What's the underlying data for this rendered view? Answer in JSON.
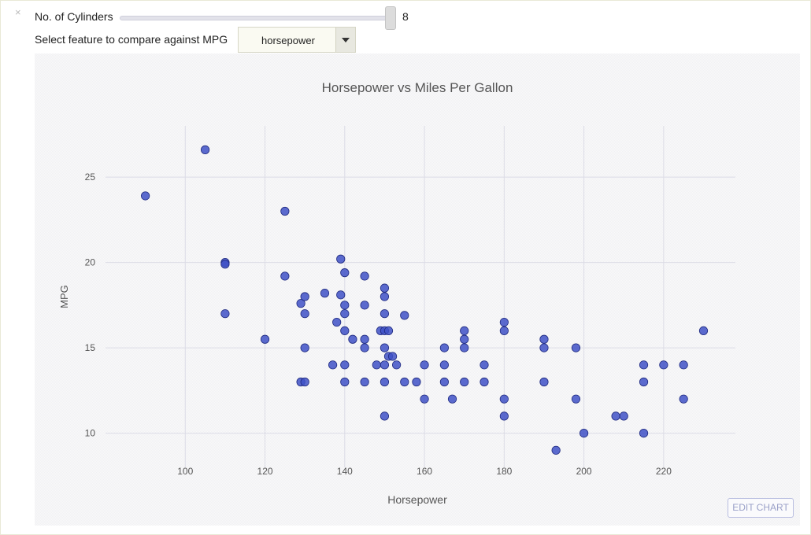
{
  "controls": {
    "close_icon": "×",
    "slider_label": "No. of Cylinders",
    "slider_value": "8",
    "select_label": "Select feature to compare against MPG",
    "select_value": "horsepower"
  },
  "edit_chart_label": "EDIT CHART",
  "colors": {
    "marker_fill": "#3f51c6",
    "marker_stroke": "#1f2a80"
  },
  "chart_data": {
    "type": "scatter",
    "title": "Horsepower vs Miles Per Gallon",
    "xlabel": "Horsepower",
    "ylabel": "MPG",
    "xlim": [
      80,
      238
    ],
    "ylim": [
      8,
      28
    ],
    "xticks": [
      100,
      120,
      140,
      160,
      180,
      200,
      220
    ],
    "yticks": [
      10,
      15,
      20,
      25
    ],
    "grid": true,
    "series": [
      {
        "points": [
          [
            90,
            23.9
          ],
          [
            105,
            26.6
          ],
          [
            110,
            20
          ],
          [
            110,
            19.9
          ],
          [
            110,
            17
          ],
          [
            120,
            15.5
          ],
          [
            125,
            23
          ],
          [
            125,
            19.2
          ],
          [
            129,
            17.6
          ],
          [
            129,
            13
          ],
          [
            130,
            18
          ],
          [
            130,
            17
          ],
          [
            130,
            15
          ],
          [
            130,
            13
          ],
          [
            135,
            18.2
          ],
          [
            137,
            14
          ],
          [
            138,
            16.5
          ],
          [
            139,
            20.2
          ],
          [
            139,
            18.1
          ],
          [
            140,
            19.4
          ],
          [
            140,
            17.5
          ],
          [
            140,
            17
          ],
          [
            140,
            16
          ],
          [
            140,
            14
          ],
          [
            140,
            13
          ],
          [
            142,
            15.5
          ],
          [
            145,
            19.2
          ],
          [
            145,
            17.5
          ],
          [
            145,
            15.5
          ],
          [
            145,
            15
          ],
          [
            145,
            13
          ],
          [
            148,
            14
          ],
          [
            149,
            16
          ],
          [
            150,
            18.5
          ],
          [
            150,
            18
          ],
          [
            150,
            17
          ],
          [
            150,
            16
          ],
          [
            150,
            15
          ],
          [
            150,
            14
          ],
          [
            150,
            13
          ],
          [
            150,
            11
          ],
          [
            151,
            16
          ],
          [
            151,
            14.5
          ],
          [
            152,
            14.5
          ],
          [
            153,
            14
          ],
          [
            155,
            13
          ],
          [
            155,
            16.9
          ],
          [
            158,
            13
          ],
          [
            160,
            14
          ],
          [
            160,
            12
          ],
          [
            165,
            15
          ],
          [
            165,
            14
          ],
          [
            165,
            13
          ],
          [
            167,
            12
          ],
          [
            170,
            16
          ],
          [
            170,
            15.5
          ],
          [
            170,
            15
          ],
          [
            170,
            13
          ],
          [
            175,
            14
          ],
          [
            175,
            13
          ],
          [
            180,
            16.5
          ],
          [
            180,
            16
          ],
          [
            180,
            12
          ],
          [
            180,
            11
          ],
          [
            190,
            15.5
          ],
          [
            190,
            15
          ],
          [
            190,
            13
          ],
          [
            193,
            9
          ],
          [
            198,
            15
          ],
          [
            198,
            12
          ],
          [
            200,
            10
          ],
          [
            208,
            11
          ],
          [
            210,
            11
          ],
          [
            215,
            14
          ],
          [
            215,
            13
          ],
          [
            215,
            10
          ],
          [
            220,
            14
          ],
          [
            225,
            14
          ],
          [
            225,
            12
          ],
          [
            230,
            16
          ]
        ]
      }
    ]
  }
}
